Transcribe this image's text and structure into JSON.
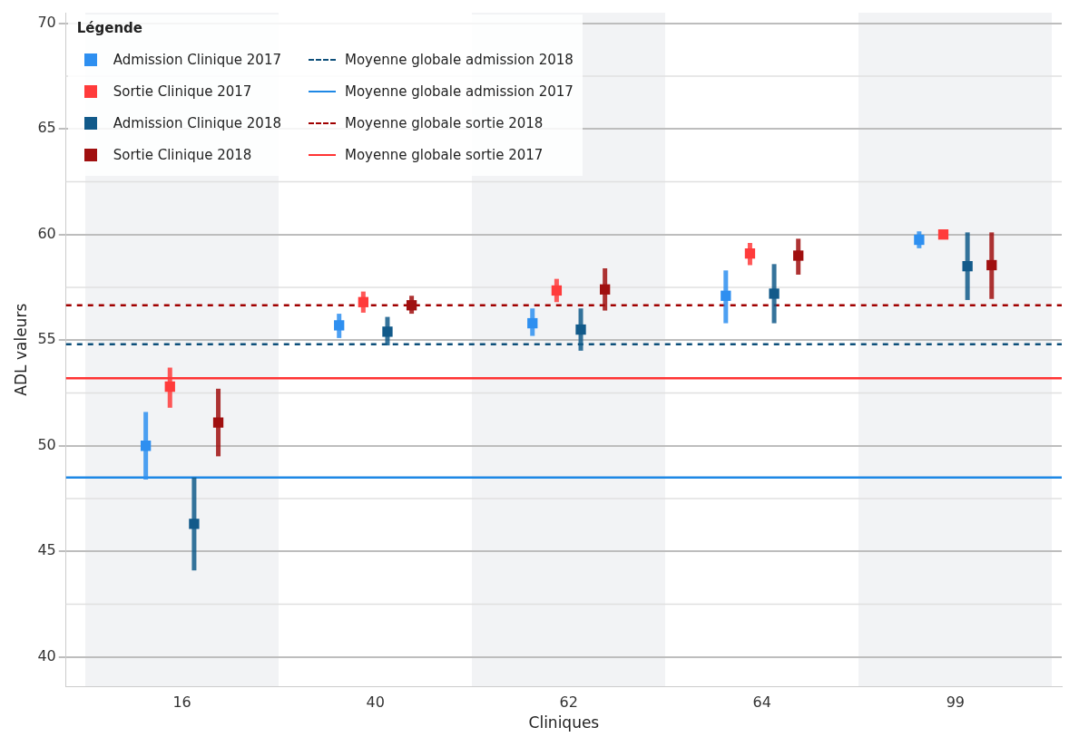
{
  "chart_data": {
    "type": "scatter",
    "xlabel": "Cliniques",
    "ylabel": "ADL valeurs",
    "legend_title": "Légende",
    "legend": "top left",
    "grid": "y",
    "marker": "square",
    "categories": [
      "16",
      "40",
      "62",
      "64",
      "99"
    ],
    "ylim": [
      38.6,
      70.5
    ],
    "yticks": [
      40,
      45,
      50,
      55,
      60,
      65,
      70
    ],
    "series": [
      {
        "name": "Admission Clinique 2017",
        "color": "#2e8ff0",
        "values": [
          50.0,
          55.7,
          55.8,
          57.1,
          59.75
        ],
        "errors": [
          [
            48.4,
            51.6
          ],
          [
            55.1,
            56.25
          ],
          [
            55.2,
            56.5
          ],
          [
            55.8,
            58.3
          ],
          [
            59.35,
            60.15
          ]
        ]
      },
      {
        "name": "Sortie Clinique 2017",
        "color": "#ff3b3b",
        "values": [
          52.8,
          56.8,
          57.35,
          59.1,
          60.0
        ],
        "errors": [
          [
            51.8,
            53.7
          ],
          [
            56.3,
            57.3
          ],
          [
            56.8,
            57.9
          ],
          [
            58.55,
            59.6
          ],
          null
        ]
      },
      {
        "name": "Admission Clinique 2018",
        "color": "#125a8a",
        "values": [
          46.3,
          55.4,
          55.5,
          57.2,
          58.5
        ],
        "errors": [
          [
            44.1,
            48.5
          ],
          [
            54.75,
            56.1
          ],
          [
            54.5,
            56.5
          ],
          [
            55.8,
            58.6
          ],
          [
            56.9,
            60.1
          ]
        ]
      },
      {
        "name": "Sortie Clinique 2018",
        "color": "#a00f0f",
        "values": [
          51.1,
          56.65,
          57.4,
          59.0,
          58.55
        ],
        "errors": [
          [
            49.5,
            52.7
          ],
          [
            56.25,
            57.1
          ],
          [
            56.4,
            58.4
          ],
          [
            58.1,
            59.8
          ],
          [
            56.95,
            60.1
          ]
        ]
      }
    ],
    "ref_lines": [
      {
        "axis": "y",
        "value": 54.8,
        "label": "Moyenne globale admission 2018",
        "color": "#0d4f7a",
        "line_style": "dashed"
      },
      {
        "axis": "y",
        "value": 48.5,
        "label": "Moyenne globale admission 2017",
        "color": "#1e88e5",
        "line_style": "solid"
      },
      {
        "axis": "y",
        "value": 56.65,
        "label": "Moyenne globale sortie 2018",
        "color": "#a00000",
        "line_style": "dashed"
      },
      {
        "axis": "y",
        "value": 53.2,
        "label": "Moyenne globale sortie 2017",
        "color": "#ff3333",
        "line_style": "solid"
      }
    ]
  }
}
